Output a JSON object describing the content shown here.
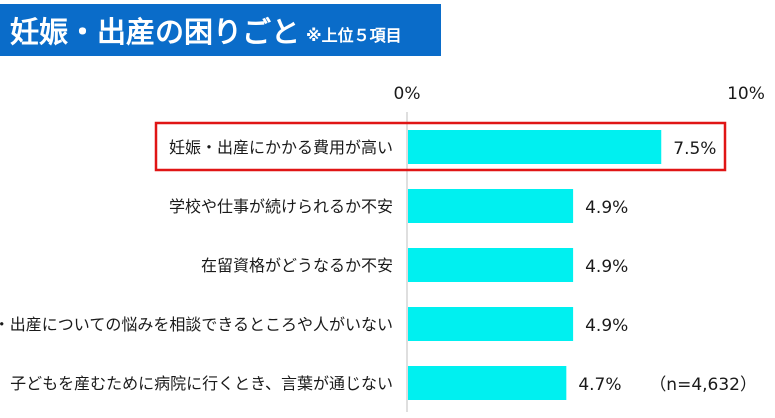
{
  "header": {
    "title": "妊娠・出産の困りごと",
    "subtitle": "※上位５項目"
  },
  "colors": {
    "title_bg": "#0a6cc9",
    "bar": "#00f0f0",
    "highlight": "#e01515",
    "axis": "#bfbfbf"
  },
  "chart_data": {
    "type": "bar",
    "orientation": "horizontal",
    "categories": [
      "妊娠・出産にかかる費用が高い",
      "学校や仕事が続けられるか不安",
      "在留資格がどうなるか不安",
      "妊娠・出産についての悩みを相談できるところや人がいない",
      "子どもを産むために病院に行くとき、言葉が通じない"
    ],
    "values": [
      7.5,
      4.9,
      4.9,
      4.9,
      4.7
    ],
    "value_labels": [
      "7.5%",
      "4.9%",
      "4.9%",
      "4.9%",
      "4.7%"
    ],
    "xlim": [
      0,
      10
    ],
    "ticks": [
      0,
      10
    ],
    "tick_labels": [
      "0%",
      "10%"
    ],
    "highlighted_index": 0,
    "annotation": "（n=4,632）",
    "grid": false
  }
}
